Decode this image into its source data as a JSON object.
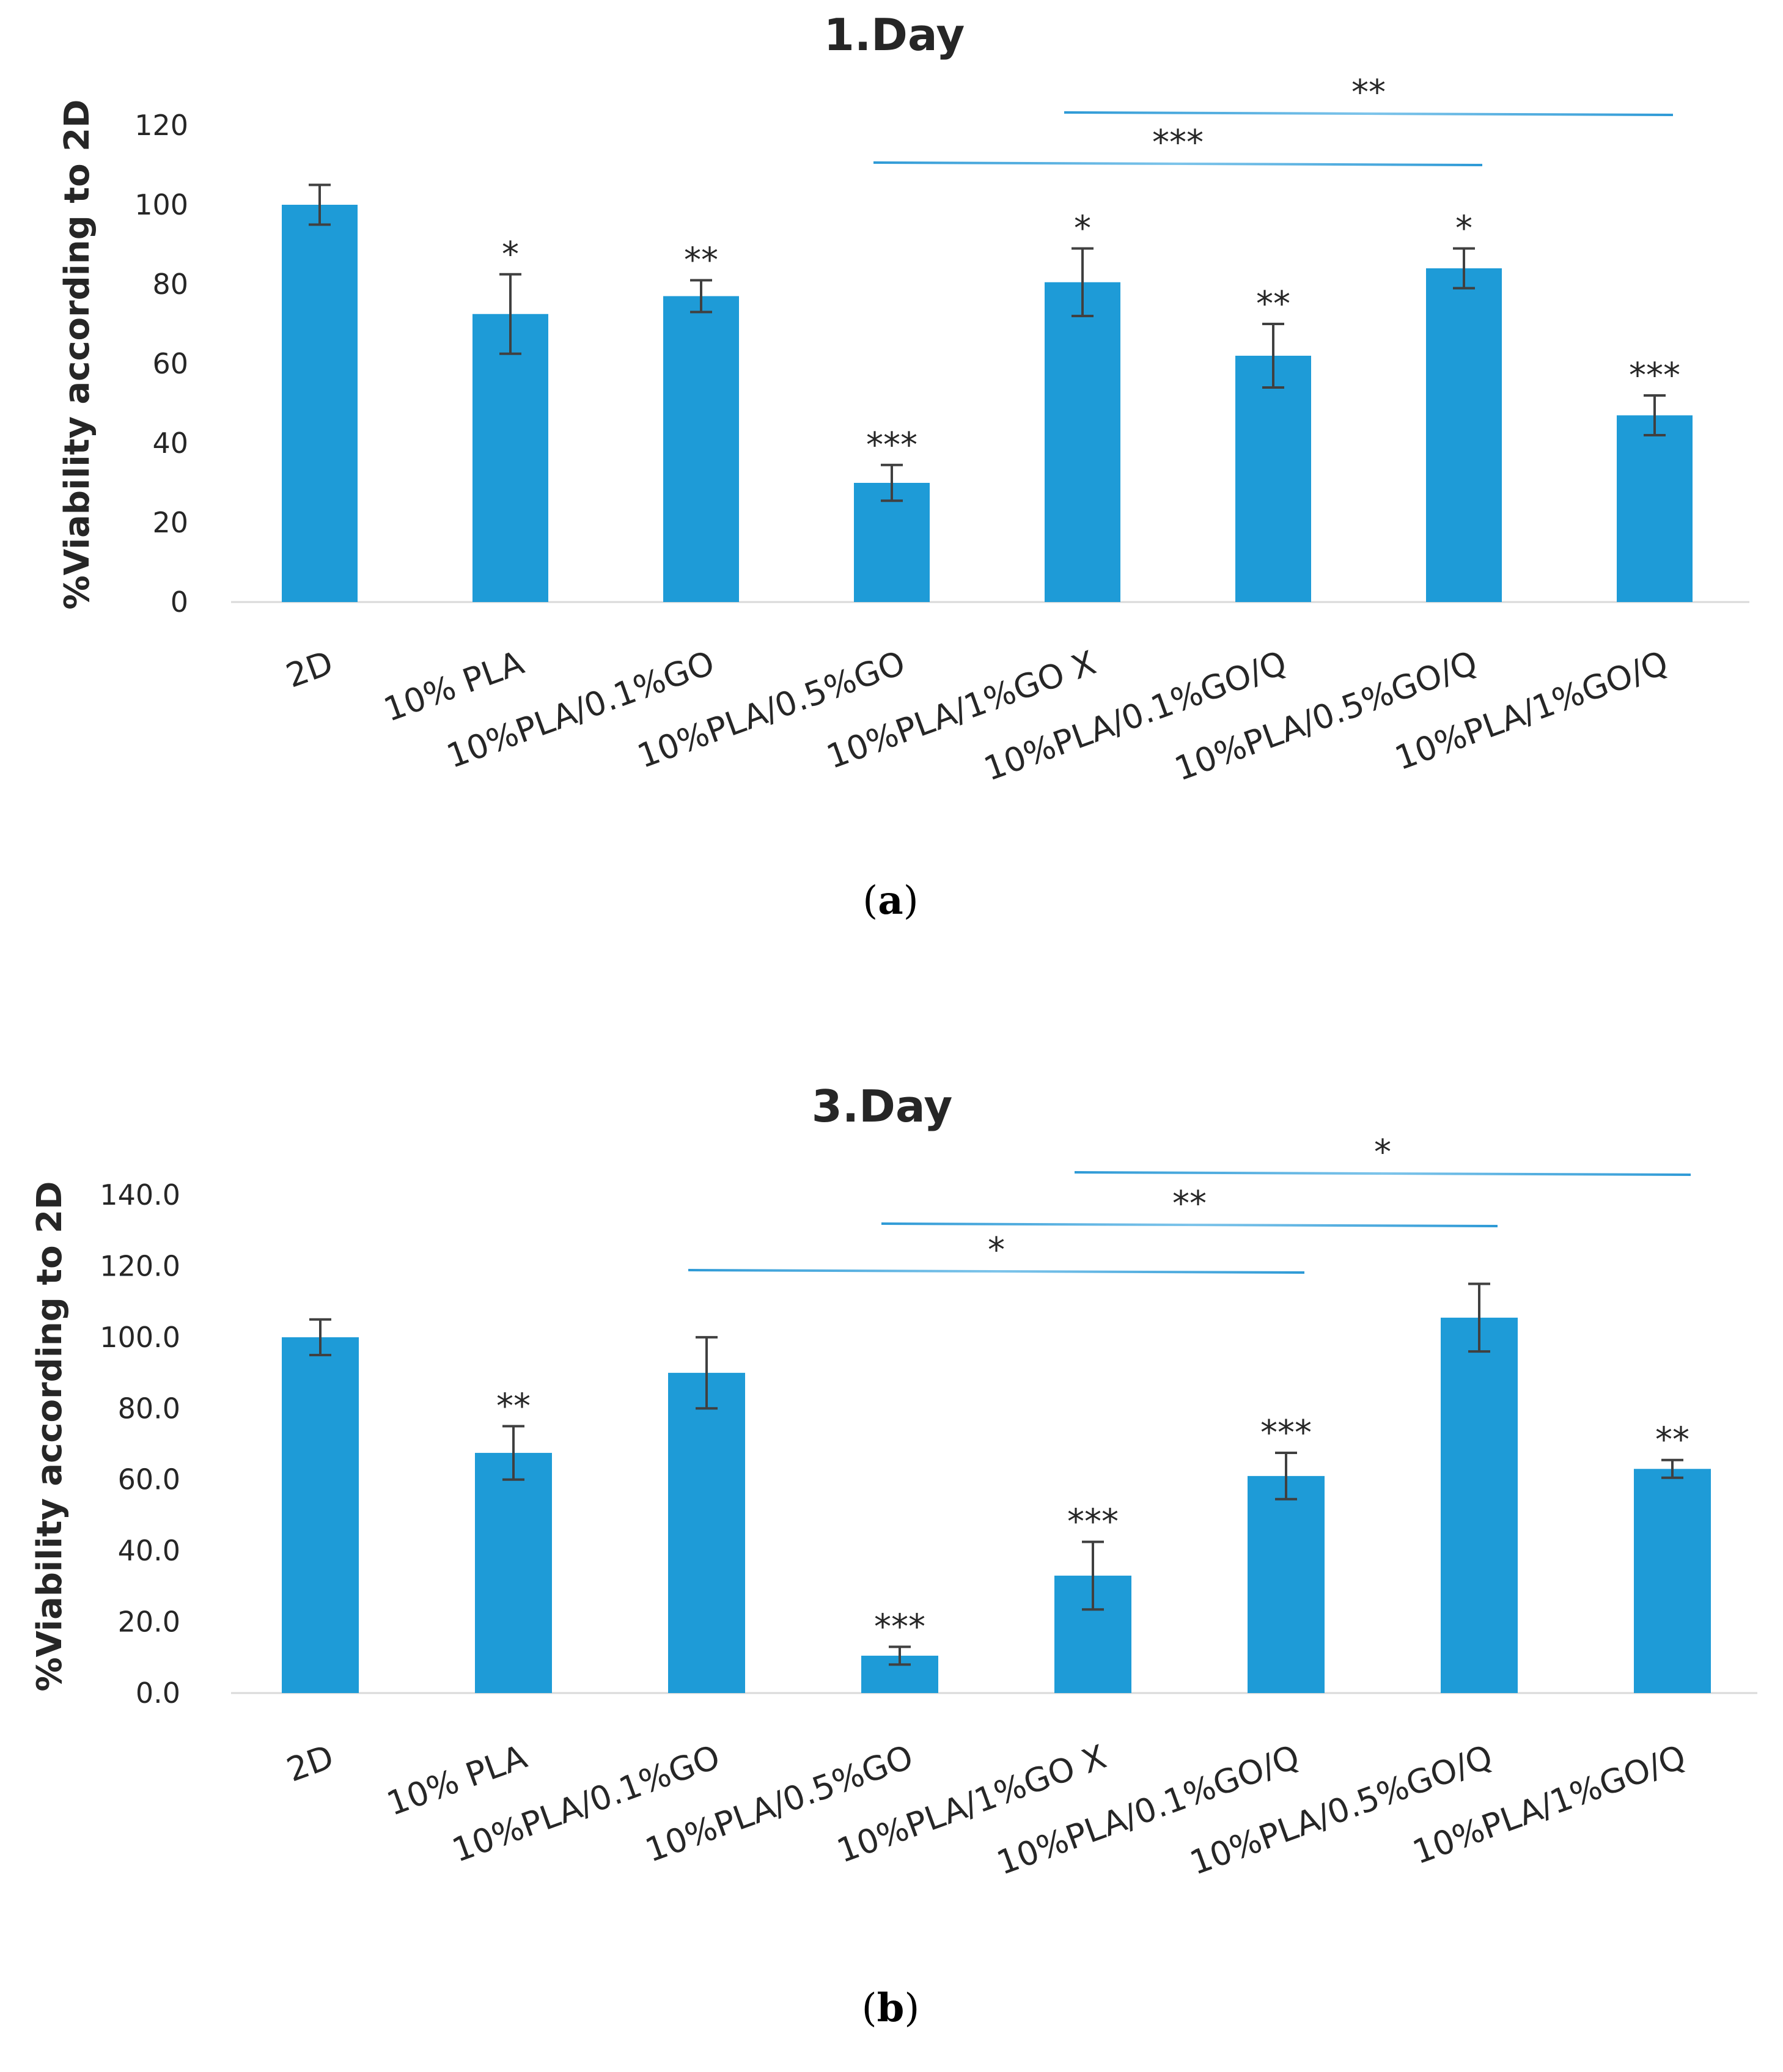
{
  "colors": {
    "bar": "#1e9bd7",
    "axis": "#d9d9d9",
    "error_bar": "#404040",
    "bracket": "#2e9ad6",
    "text": "#262626"
  },
  "chart_data": [
    {
      "panel": "a",
      "type": "bar",
      "title": "1.Day",
      "ylabel": "%Viability according to 2D",
      "xlabel": "",
      "ylim": [
        0,
        120
      ],
      "yticks": [
        0,
        20,
        40,
        60,
        80,
        100,
        120
      ],
      "yticklabels": [
        "0",
        "20",
        "40",
        "60",
        "80",
        "100",
        "120"
      ],
      "grid": false,
      "categories": [
        "2D",
        "10% PLA",
        "10%PLA/0.1%GO",
        "10%PLA/0.5%GO",
        "10%PLA/1%GO X",
        "10%PLA/0.1%GO/Q",
        "10%PLA/0.5%GO/Q",
        "10%PLA/1%GO/Q"
      ],
      "values": [
        100,
        72.5,
        77,
        30,
        80.5,
        62,
        84,
        47
      ],
      "errors": [
        5,
        10,
        4,
        4.5,
        8.5,
        8,
        5,
        5
      ],
      "significance": [
        "",
        "*",
        "**",
        "***",
        "*",
        "**",
        "*",
        "***"
      ],
      "brackets": [
        {
          "from": 3,
          "to": 6,
          "label": "***"
        },
        {
          "from": 4,
          "to": 7,
          "label": "**"
        }
      ]
    },
    {
      "panel": "b",
      "type": "bar",
      "title": "3.Day",
      "ylabel": "%Viability according to 2D",
      "xlabel": "",
      "ylim": [
        0,
        140
      ],
      "yticks": [
        0,
        20,
        40,
        60,
        80,
        100,
        120,
        140
      ],
      "yticklabels": [
        "0.0",
        "20.0",
        "40.0",
        "60.0",
        "80.0",
        "100.0",
        "120.0",
        "140.0"
      ],
      "grid": false,
      "categories": [
        "2D",
        "10% PLA",
        "10%PLA/0.1%GO",
        "10%PLA/0.5%GO",
        "10%PLA/1%GO X",
        "10%PLA/0.1%GO/Q",
        "10%PLA/0.5%GO/Q",
        "10%PLA/1%GO/Q"
      ],
      "values": [
        100,
        67.5,
        90,
        10.5,
        33,
        61,
        105.5,
        63
      ],
      "errors": [
        5,
        7.5,
        10,
        2.5,
        9.5,
        6.5,
        9.5,
        2.5
      ],
      "significance": [
        "",
        "**",
        "",
        "***",
        "***",
        "***",
        "",
        "**"
      ],
      "brackets": [
        {
          "from": 2,
          "to": 5,
          "label": "*"
        },
        {
          "from": 3,
          "to": 6,
          "label": "**"
        },
        {
          "from": 4,
          "to": 7,
          "label": "*"
        }
      ]
    }
  ],
  "panel_labels": [
    {
      "open": "(",
      "letter": "a",
      "close": ")"
    },
    {
      "open": "(",
      "letter": "b",
      "close": ")"
    }
  ]
}
